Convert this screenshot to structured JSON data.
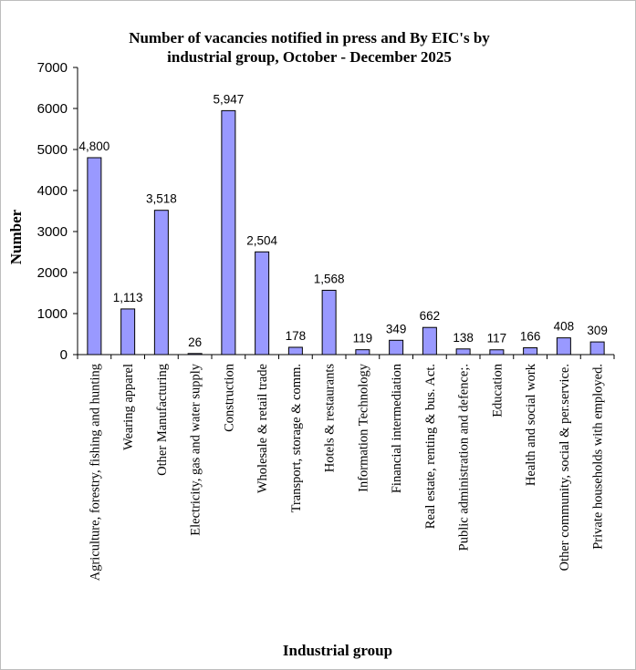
{
  "chart_data": {
    "type": "bar",
    "title": [
      "Number of vacancies notified in press and By EIC's  by",
      "industrial group, October - December 2025"
    ],
    "xlabel": "Industrial group",
    "ylabel": "Number",
    "ylim": [
      0,
      7000
    ],
    "yticks": [
      0,
      1000,
      2000,
      3000,
      4000,
      5000,
      6000,
      7000
    ],
    "grid": false,
    "legend": "none",
    "bar_color": "#9999ff",
    "categories": [
      "Agriculture, forestry, fishing and hunting",
      "Wearing apparel",
      "Other Manufacturing",
      "Electricity, gas and water supply",
      "Construction",
      "Wholesale & retail trade",
      "Transport, storage & comm.",
      "Hotels & restaurants",
      "Information Technology",
      "Financial intermediation",
      "Real estate, renting & bus. Act.",
      "Public administration and defence;.",
      "Education",
      "Health and social work",
      "Other community, social & per.service.",
      "Private households with employed."
    ],
    "values": [
      4800,
      1113,
      3518,
      26,
      5947,
      2504,
      178,
      1568,
      119,
      349,
      662,
      138,
      117,
      166,
      408,
      309
    ],
    "value_labels": [
      "4,800",
      "1,113",
      "3,518",
      "26",
      "5,947",
      "2,504",
      "178",
      "1,568",
      "119",
      "349",
      "662",
      "138",
      "117",
      "166",
      "408",
      "309"
    ]
  }
}
